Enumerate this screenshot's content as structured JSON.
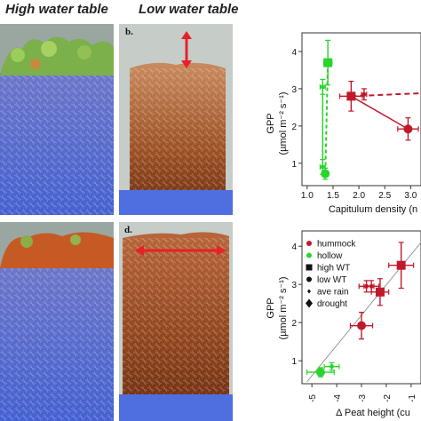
{
  "headings": {
    "high": "High water table",
    "low": "Low water table"
  },
  "panel_labels": {
    "b": "b.",
    "d": "d."
  },
  "colors": {
    "hummock": "#c0192b",
    "hollow": "#29d52c",
    "water": "#5670d8",
    "moss_green": "#7cb04a"
  },
  "chart_data": [
    {
      "type": "scatter",
      "title": "",
      "xlabel": "Capitulum density (n",
      "ylabel_line1": "GPP",
      "ylabel_line2": "(µmol m⁻² s⁻¹)",
      "xlim": [
        0.9,
        3.2
      ],
      "ylim": [
        0.4,
        4.5
      ],
      "xticks": [
        "1.0",
        "1.5",
        "2.0",
        "2.5",
        "3.0"
      ],
      "yticks": [
        "1",
        "2",
        "3",
        "4"
      ],
      "series": [
        {
          "points": [
            {
              "x": 1.4,
              "y": 3.7,
              "xerr": 0.08,
              "yerr": 0.6
            },
            {
              "x": 1.35,
              "y": 0.72,
              "xerr": 0.06,
              "yerr": 0.15
            },
            {
              "x": 1.3,
              "y": 0.9,
              "xerr": 0.05,
              "yerr": 0.2
            },
            {
              "x": 1.3,
              "y": 3.05,
              "xerr": 0.05,
              "yerr": 0.2
            }
          ]
        },
        {
          "points": [
            {
              "x": 1.85,
              "y": 2.8,
              "xerr": 0.22,
              "yerr": 0.4
            },
            {
              "x": 2.95,
              "y": 1.92,
              "xerr": 0.2,
              "yerr": 0.3
            },
            {
              "x": 2.1,
              "y": 2.85,
              "xerr": 0.05,
              "yerr": 0.15
            }
          ]
        }
      ]
    },
    {
      "type": "scatter",
      "title": "",
      "xlabel": "Δ Peat height (cu",
      "ylabel_line1": "GPP",
      "ylabel_line2": "(µmol m⁻² s⁻¹)",
      "xlim": [
        -5.4,
        -0.6
      ],
      "ylim": [
        0.4,
        4.4
      ],
      "xticks": [
        "-5",
        "-4",
        "-3",
        "-2",
        "-1"
      ],
      "yticks": [
        "1",
        "2",
        "3",
        "4"
      ],
      "legend": {
        "position": "top-left",
        "entries": [
          {
            "label": "hummock",
            "marker": "circle",
            "color": "#c0192b"
          },
          {
            "label": "hollow",
            "marker": "circle",
            "color": "#29d52c"
          },
          {
            "label": "high WT",
            "marker": "square",
            "color": "#111111"
          },
          {
            "label": "low WT",
            "marker": "circle",
            "color": "#111111"
          },
          {
            "label": "ave rain",
            "marker": "small-diamond",
            "color": "#111111"
          },
          {
            "label": "drought",
            "marker": "diamond",
            "color": "#111111"
          }
        ]
      },
      "series": [
        {
          "points": [
            {
              "x": -4.65,
              "y": 0.7,
              "xerr": 0.55,
              "yerr": 0.12
            },
            {
              "x": -4.2,
              "y": 0.85,
              "xerr": 0.3,
              "yerr": 0.1
            }
          ]
        },
        {
          "points": [
            {
              "x": -3.0,
              "y": 1.92,
              "xerr": 0.45,
              "yerr": 0.35
            },
            {
              "x": -2.25,
              "y": 2.8,
              "xerr": 0.35,
              "yerr": 0.35
            },
            {
              "x": -2.8,
              "y": 2.95,
              "xerr": 0.3,
              "yerr": 0.15
            },
            {
              "x": -2.6,
              "y": 2.95,
              "xerr": 0.3,
              "yerr": 0.15
            },
            {
              "x": -1.4,
              "y": 3.5,
              "xerr": 0.5,
              "yerr": 0.6
            }
          ]
        }
      ]
    }
  ]
}
